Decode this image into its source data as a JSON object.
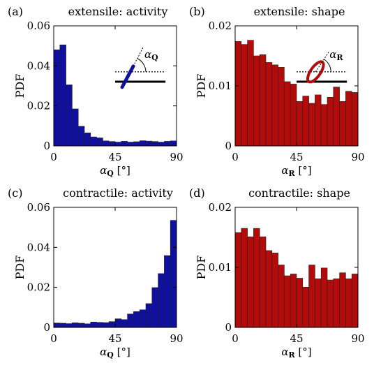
{
  "chart_data": [
    {
      "type": "bar",
      "panel": "(a)",
      "title": "extensile: activity",
      "ylabel": "PDF",
      "xlabel_symbol": "α",
      "xlabel_sub": "Q",
      "xlabel_unit": "[°]",
      "xlim": [
        0,
        90
      ],
      "ylim": [
        0,
        0.06
      ],
      "xticks": [
        "0",
        "45",
        "90"
      ],
      "yticks": [
        "0",
        "0.02",
        "0.04",
        "0.06"
      ],
      "bin_width": 4.5,
      "color": "#1010a0",
      "inset_label_symbol": "α",
      "inset_label_sub": "Q",
      "inset_kind": "rod",
      "values": [
        0.048,
        0.0505,
        0.0305,
        0.0185,
        0.0098,
        0.0065,
        0.0045,
        0.004,
        0.0025,
        0.0022,
        0.0019,
        0.0023,
        0.0019,
        0.0021,
        0.0026,
        0.0024,
        0.0022,
        0.0019,
        0.0023,
        0.0025
      ]
    },
    {
      "type": "bar",
      "panel": "(b)",
      "title": "extensile: shape",
      "ylabel": "PDF",
      "xlabel_symbol": "α",
      "xlabel_sub": "R",
      "xlabel_unit": "[°]",
      "xlim": [
        0,
        90
      ],
      "ylim": [
        0,
        0.02
      ],
      "xticks": [
        "0",
        "45",
        "90"
      ],
      "yticks": [
        "0",
        "0.01",
        "0.02"
      ],
      "bin_width": 4.5,
      "color": "#b30a0a",
      "inset_label_symbol": "α",
      "inset_label_sub": "R",
      "inset_kind": "ellipse",
      "values": [
        0.0174,
        0.0169,
        0.0176,
        0.015,
        0.0152,
        0.0139,
        0.0135,
        0.0131,
        0.0107,
        0.0103,
        0.0074,
        0.0083,
        0.0071,
        0.0085,
        0.0069,
        0.0081,
        0.0098,
        0.0074,
        0.0091,
        0.0089
      ]
    },
    {
      "type": "bar",
      "panel": "(c)",
      "title": "contractile: activity",
      "ylabel": "PDF",
      "xlabel_symbol": "α",
      "xlabel_sub": "Q",
      "xlabel_unit": "[°]",
      "xlim": [
        0,
        90
      ],
      "ylim": [
        0,
        0.06
      ],
      "xticks": [
        "0",
        "45",
        "90"
      ],
      "yticks": [
        "0",
        "0.02",
        "0.04",
        "0.06"
      ],
      "bin_width": 4.5,
      "color": "#1010a0",
      "values": [
        0.0022,
        0.0021,
        0.0019,
        0.0023,
        0.0021,
        0.0018,
        0.0027,
        0.0025,
        0.0024,
        0.0029,
        0.0043,
        0.0039,
        0.0067,
        0.0079,
        0.0088,
        0.0119,
        0.0199,
        0.0269,
        0.0359,
        0.0535
      ]
    },
    {
      "type": "bar",
      "panel": "(d)",
      "title": "contractile: shape",
      "ylabel": "PDF",
      "xlabel_symbol": "α",
      "xlabel_sub": "R",
      "xlabel_unit": "[°]",
      "xlim": [
        0,
        90
      ],
      "ylim": [
        0,
        0.02
      ],
      "xticks": [
        "0",
        "45",
        "90"
      ],
      "yticks": [
        "0",
        "0.01",
        "0.02"
      ],
      "bin_width": 4.5,
      "color": "#b30a0a",
      "values": [
        0.0158,
        0.0165,
        0.0151,
        0.0165,
        0.0151,
        0.0128,
        0.0124,
        0.0104,
        0.0086,
        0.0089,
        0.0082,
        0.0067,
        0.0104,
        0.0081,
        0.0099,
        0.0079,
        0.0081,
        0.0091,
        0.0081,
        0.0089
      ]
    }
  ]
}
